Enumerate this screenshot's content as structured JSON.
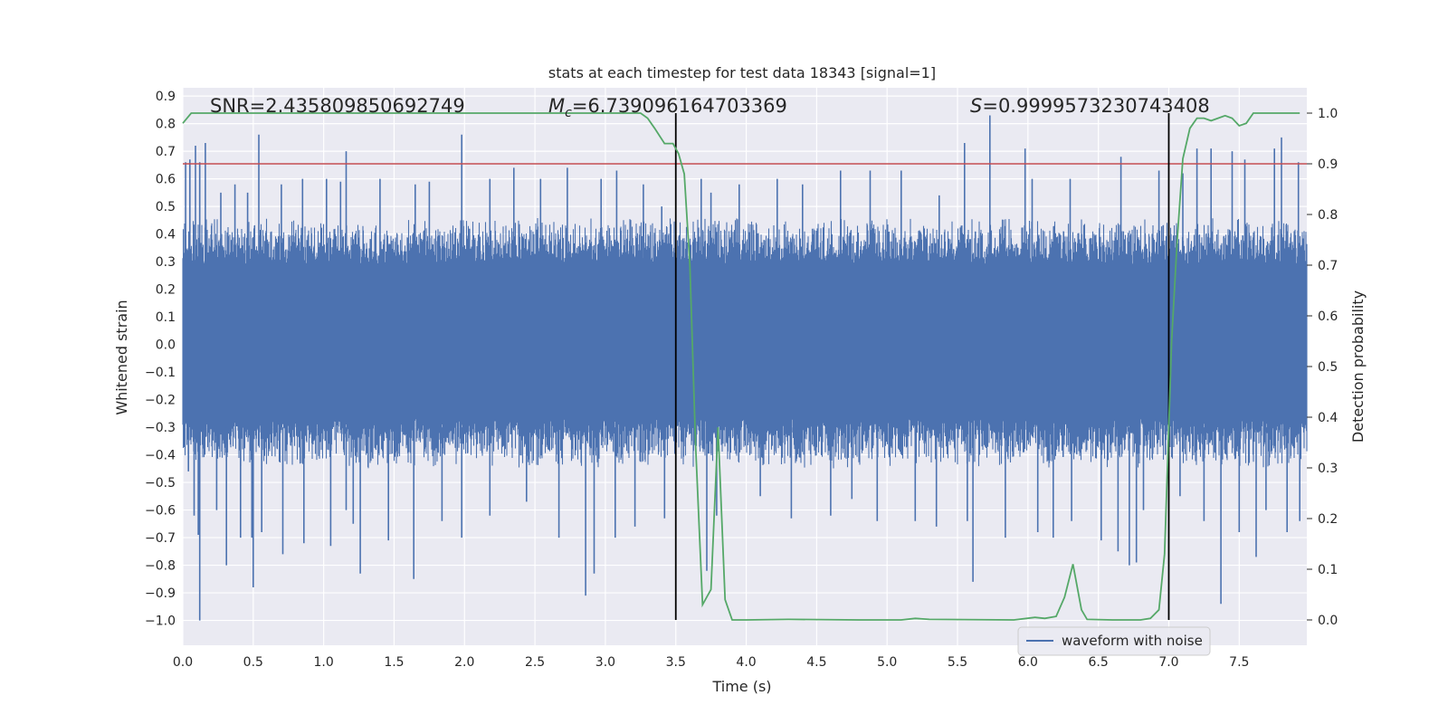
{
  "chart_data": {
    "type": "line",
    "title": "stats at each timestep for test data 18343 [signal=1]",
    "xlabel": "Time (s)",
    "ylabel": "Whitened strain",
    "y2label": "Detection probability",
    "xlim": [
      0.0,
      7.98
    ],
    "ylim": [
      -1.09,
      0.93
    ],
    "y2lim": [
      -0.05,
      1.05
    ],
    "xticks": [
      0.0,
      0.5,
      1.0,
      1.5,
      2.0,
      2.5,
      3.0,
      3.5,
      4.0,
      4.5,
      5.0,
      5.5,
      6.0,
      6.5,
      7.0,
      7.5
    ],
    "xtick_labels": [
      "0.0",
      "0.5",
      "1.0",
      "1.5",
      "2.0",
      "2.5",
      "3.0",
      "3.5",
      "4.0",
      "4.5",
      "5.0",
      "5.5",
      "6.0",
      "6.5",
      "7.0",
      "7.5"
    ],
    "yticks": [
      0.9,
      0.8,
      0.7,
      0.6,
      0.5,
      0.4,
      0.3,
      0.2,
      0.1,
      0.0,
      -0.1,
      -0.2,
      -0.3,
      -0.4,
      -0.5,
      -0.6,
      -0.7,
      -0.8,
      -0.9,
      -1.0
    ],
    "ytick_labels": [
      "0.9",
      "0.8",
      "0.7",
      "0.6",
      "0.5",
      "0.4",
      "0.3",
      "0.2",
      "0.1",
      "0.0",
      "−0.1",
      "−0.2",
      "−0.3",
      "−0.4",
      "−0.5",
      "−0.6",
      "−0.7",
      "−0.8",
      "−0.9",
      "−1.0"
    ],
    "y2ticks": [
      1.0,
      0.9,
      0.8,
      0.7,
      0.6,
      0.5,
      0.4,
      0.3,
      0.2,
      0.1,
      0.0
    ],
    "y2tick_labels": [
      "1.0",
      "0.9",
      "0.8",
      "0.7",
      "0.6",
      "0.5",
      "0.4",
      "0.3",
      "0.2",
      "0.1",
      "0.0"
    ],
    "grid": true,
    "legend_position": "bottom-right",
    "annotations": {
      "snr": "SNR=2.435809850692749",
      "mc_symbol": "M",
      "mc_sub": "c",
      "mc_value": "=6.739096164703369",
      "s_symbol": "S",
      "s_value": "=0.9999573230743408"
    },
    "threshold": {
      "value": 0.9,
      "axis": "y2",
      "color": "#c44e52"
    },
    "vertical_lines": [
      3.5,
      7.0
    ],
    "series": [
      {
        "name": "waveform with noise",
        "axis": "y",
        "color": "#4c72b0",
        "t_range": [
          0.0,
          7.98
        ],
        "envelope": {
          "core": [
            -0.27,
            0.29
          ],
          "typical": [
            -0.45,
            0.46
          ],
          "peaks_up": [
            [
              0.02,
              0.66
            ],
            [
              0.05,
              0.67
            ],
            [
              0.09,
              0.72
            ],
            [
              0.12,
              0.66
            ],
            [
              0.16,
              0.73
            ],
            [
              0.27,
              0.55
            ],
            [
              0.37,
              0.58
            ],
            [
              0.46,
              0.55
            ],
            [
              0.54,
              0.76
            ],
            [
              0.7,
              0.58
            ],
            [
              0.85,
              0.6
            ],
            [
              1.02,
              0.6
            ],
            [
              1.12,
              0.59
            ],
            [
              1.16,
              0.7
            ],
            [
              1.4,
              0.6
            ],
            [
              1.65,
              0.58
            ],
            [
              1.75,
              0.59
            ],
            [
              1.98,
              0.76
            ],
            [
              2.18,
              0.6
            ],
            [
              2.35,
              0.64
            ],
            [
              2.54,
              0.6
            ],
            [
              2.73,
              0.64
            ],
            [
              2.97,
              0.6
            ],
            [
              3.08,
              0.63
            ],
            [
              3.27,
              0.58
            ],
            [
              3.4,
              0.5
            ],
            [
              3.68,
              0.6
            ],
            [
              3.75,
              0.55
            ],
            [
              3.95,
              0.58
            ],
            [
              4.22,
              0.6
            ],
            [
              4.4,
              0.58
            ],
            [
              4.67,
              0.63
            ],
            [
              4.88,
              0.63
            ],
            [
              5.1,
              0.63
            ],
            [
              5.37,
              0.54
            ],
            [
              5.55,
              0.73
            ],
            [
              5.73,
              0.83
            ],
            [
              5.98,
              0.71
            ],
            [
              6.03,
              0.6
            ],
            [
              6.3,
              0.6
            ],
            [
              6.66,
              0.68
            ],
            [
              6.93,
              0.63
            ],
            [
              7.1,
              0.62
            ],
            [
              7.2,
              0.71
            ],
            [
              7.3,
              0.71
            ],
            [
              7.45,
              0.7
            ],
            [
              7.54,
              0.67
            ],
            [
              7.75,
              0.71
            ],
            [
              7.8,
              0.75
            ],
            [
              7.92,
              0.66
            ]
          ],
          "peaks_down": [
            [
              0.04,
              -0.46
            ],
            [
              0.08,
              -0.62
            ],
            [
              0.11,
              -0.69
            ],
            [
              0.12,
              -1.0
            ],
            [
              0.24,
              -0.6
            ],
            [
              0.31,
              -0.8
            ],
            [
              0.41,
              -0.7
            ],
            [
              0.49,
              -0.7
            ],
            [
              0.5,
              -0.88
            ],
            [
              0.56,
              -0.68
            ],
            [
              0.71,
              -0.76
            ],
            [
              0.86,
              -0.72
            ],
            [
              1.05,
              -0.73
            ],
            [
              1.16,
              -0.6
            ],
            [
              1.21,
              -0.65
            ],
            [
              1.26,
              -0.83
            ],
            [
              1.46,
              -0.71
            ],
            [
              1.64,
              -0.85
            ],
            [
              1.84,
              -0.64
            ],
            [
              1.98,
              -0.7
            ],
            [
              2.18,
              -0.62
            ],
            [
              2.44,
              -0.57
            ],
            [
              2.67,
              -0.7
            ],
            [
              2.86,
              -0.91
            ],
            [
              2.92,
              -0.83
            ],
            [
              3.07,
              -0.7
            ],
            [
              3.21,
              -0.66
            ],
            [
              3.42,
              -0.63
            ],
            [
              3.72,
              -0.82
            ],
            [
              3.79,
              -0.62
            ],
            [
              4.1,
              -0.55
            ],
            [
              4.32,
              -0.63
            ],
            [
              4.6,
              -0.62
            ],
            [
              4.75,
              -0.56
            ],
            [
              4.93,
              -0.64
            ],
            [
              5.2,
              -0.64
            ],
            [
              5.35,
              -0.66
            ],
            [
              5.57,
              -0.64
            ],
            [
              5.61,
              -0.86
            ],
            [
              5.84,
              -0.7
            ],
            [
              6.07,
              -0.68
            ],
            [
              6.18,
              -0.7
            ],
            [
              6.31,
              -0.64
            ],
            [
              6.52,
              -0.71
            ],
            [
              6.64,
              -0.75
            ],
            [
              6.72,
              -0.8
            ],
            [
              6.77,
              -0.79
            ],
            [
              6.82,
              -0.6
            ],
            [
              7.08,
              -0.55
            ],
            [
              7.25,
              -0.64
            ],
            [
              7.37,
              -0.94
            ],
            [
              7.5,
              -0.68
            ],
            [
              7.62,
              -0.77
            ],
            [
              7.69,
              -0.6
            ],
            [
              7.84,
              -0.68
            ],
            [
              7.93,
              -0.64
            ]
          ]
        }
      },
      {
        "name": "detection probability",
        "axis": "y2",
        "color": "#55a868",
        "x": [
          0.0,
          0.06,
          0.1,
          0.3,
          0.5,
          1.0,
          1.5,
          2.0,
          2.5,
          3.0,
          3.15,
          3.25,
          3.3,
          3.35,
          3.42,
          3.48,
          3.52,
          3.56,
          3.6,
          3.64,
          3.69,
          3.75,
          3.8,
          3.85,
          3.9,
          4.0,
          4.3,
          4.8,
          5.1,
          5.2,
          5.3,
          5.9,
          6.05,
          6.12,
          6.2,
          6.26,
          6.32,
          6.38,
          6.42,
          6.6,
          6.8,
          6.87,
          6.93,
          6.97,
          7.02,
          7.06,
          7.1,
          7.15,
          7.2,
          7.25,
          7.3,
          7.35,
          7.4,
          7.45,
          7.5,
          7.55,
          7.6,
          7.7,
          7.8,
          7.93
        ],
        "y": [
          0.98,
          1.0,
          1.0,
          1.0,
          1.0,
          1.0,
          1.0,
          1.0,
          1.0,
          1.0,
          1.0,
          1.0,
          0.99,
          0.97,
          0.94,
          0.94,
          0.92,
          0.88,
          0.7,
          0.35,
          0.03,
          0.06,
          0.38,
          0.04,
          0.0,
          0.0,
          0.001,
          0.0,
          0.0,
          0.003,
          0.001,
          0.0,
          0.005,
          0.003,
          0.007,
          0.045,
          0.11,
          0.02,
          0.001,
          0.0,
          0.0,
          0.003,
          0.02,
          0.13,
          0.55,
          0.75,
          0.91,
          0.97,
          0.99,
          0.99,
          0.985,
          0.99,
          0.995,
          0.99,
          0.975,
          0.98,
          1.0,
          1.0,
          1.0,
          1.0
        ]
      }
    ]
  }
}
